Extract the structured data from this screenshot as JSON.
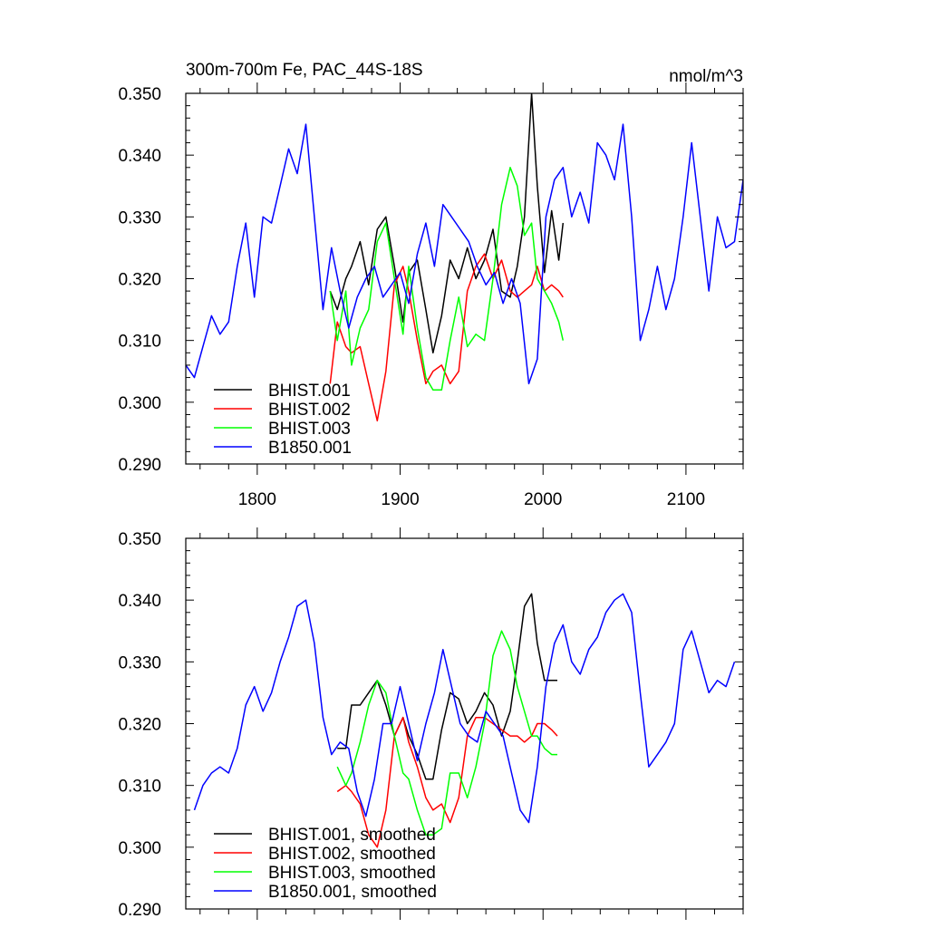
{
  "chart_data": [
    {
      "type": "line",
      "title": "300m-700m Fe, PAC_44S-18S",
      "units": "nmol/m^3",
      "xlim": [
        1750,
        2140
      ],
      "ylim": [
        0.29,
        0.35
      ],
      "xticks": [
        1800,
        1900,
        2000,
        2100
      ],
      "yticks": [
        0.29,
        0.3,
        0.31,
        0.32,
        0.33,
        0.34,
        0.35
      ],
      "ytick_labels": [
        "0.290",
        "0.300",
        "0.310",
        "0.320",
        "0.330",
        "0.340",
        "0.350"
      ],
      "xtick_labels": [
        "1800",
        "1900",
        "2000",
        "2100"
      ],
      "legend_position": "bottom-left",
      "series": [
        {
          "name": "BHIST.001",
          "color": "#000000",
          "x": [
            1851,
            1856,
            1862,
            1866,
            1872,
            1878,
            1884,
            1890,
            1896,
            1902,
            1906,
            1912,
            1918,
            1923,
            1929,
            1935,
            1941,
            1947,
            1953,
            1959,
            1965,
            1971,
            1977,
            1982,
            1987,
            1992,
            1996,
            2001,
            2006,
            2011,
            2014
          ],
          "y": [
            0.318,
            0.315,
            0.32,
            0.322,
            0.326,
            0.319,
            0.328,
            0.33,
            0.322,
            0.313,
            0.321,
            0.323,
            0.315,
            0.308,
            0.314,
            0.323,
            0.32,
            0.325,
            0.32,
            0.323,
            0.328,
            0.318,
            0.317,
            0.322,
            0.33,
            0.35,
            0.335,
            0.321,
            0.331,
            0.323,
            0.329
          ]
        },
        {
          "name": "BHIST.002",
          "color": "#ff0000",
          "x": [
            1851,
            1856,
            1862,
            1866,
            1872,
            1878,
            1884,
            1890,
            1896,
            1902,
            1906,
            1912,
            1918,
            1923,
            1929,
            1935,
            1941,
            1947,
            1953,
            1959,
            1965,
            1971,
            1977,
            1982,
            1987,
            1992,
            1996,
            2001,
            2006,
            2011,
            2014
          ],
          "y": [
            0.303,
            0.313,
            0.309,
            0.308,
            0.309,
            0.303,
            0.297,
            0.305,
            0.319,
            0.322,
            0.318,
            0.31,
            0.303,
            0.305,
            0.306,
            0.303,
            0.305,
            0.318,
            0.322,
            0.324,
            0.32,
            0.323,
            0.318,
            0.317,
            0.318,
            0.319,
            0.322,
            0.318,
            0.319,
            0.318,
            0.317
          ]
        },
        {
          "name": "BHIST.003",
          "color": "#00ff00",
          "x": [
            1851,
            1856,
            1862,
            1866,
            1872,
            1878,
            1884,
            1890,
            1896,
            1902,
            1906,
            1912,
            1918,
            1923,
            1929,
            1935,
            1941,
            1947,
            1953,
            1959,
            1965,
            1971,
            1977,
            1982,
            1987,
            1992,
            1996,
            2001,
            2006,
            2011,
            2014
          ],
          "y": [
            0.318,
            0.31,
            0.318,
            0.306,
            0.312,
            0.315,
            0.326,
            0.329,
            0.32,
            0.311,
            0.322,
            0.312,
            0.304,
            0.302,
            0.302,
            0.31,
            0.317,
            0.309,
            0.311,
            0.31,
            0.32,
            0.332,
            0.338,
            0.335,
            0.327,
            0.329,
            0.32,
            0.318,
            0.316,
            0.313,
            0.31
          ]
        },
        {
          "name": "B1850.001",
          "color": "#0000ff",
          "x": [
            1750,
            1756,
            1762,
            1768,
            1774,
            1780,
            1786,
            1792,
            1798,
            1804,
            1810,
            1816,
            1822,
            1828,
            1834,
            1840,
            1846,
            1852,
            1858,
            1864,
            1870,
            1876,
            1882,
            1888,
            1894,
            1900,
            1906,
            1912,
            1918,
            1924,
            1930,
            1936,
            1942,
            1948,
            1954,
            1960,
            1966,
            1972,
            1978,
            1984,
            1990,
            1996,
            2002,
            2008,
            2014,
            2020,
            2026,
            2032,
            2038,
            2044,
            2050,
            2056,
            2062,
            2068,
            2074,
            2080,
            2086,
            2092,
            2098,
            2104,
            2110,
            2116,
            2122,
            2128,
            2134,
            2140
          ],
          "y": [
            0.306,
            0.304,
            0.309,
            0.314,
            0.311,
            0.313,
            0.322,
            0.329,
            0.317,
            0.33,
            0.329,
            0.335,
            0.341,
            0.337,
            0.345,
            0.33,
            0.315,
            0.325,
            0.318,
            0.312,
            0.317,
            0.32,
            0.322,
            0.317,
            0.319,
            0.321,
            0.316,
            0.324,
            0.329,
            0.322,
            0.332,
            0.33,
            0.328,
            0.326,
            0.322,
            0.319,
            0.321,
            0.316,
            0.32,
            0.316,
            0.303,
            0.307,
            0.33,
            0.336,
            0.338,
            0.33,
            0.334,
            0.329,
            0.342,
            0.34,
            0.336,
            0.345,
            0.33,
            0.31,
            0.315,
            0.322,
            0.315,
            0.32,
            0.33,
            0.342,
            0.33,
            0.318,
            0.33,
            0.325,
            0.326,
            0.336
          ]
        }
      ]
    },
    {
      "type": "line",
      "xlim": [
        1750,
        2140
      ],
      "ylim": [
        0.29,
        0.35
      ],
      "xticks": [
        1800,
        1900,
        2000,
        2100
      ],
      "yticks": [
        0.29,
        0.3,
        0.31,
        0.32,
        0.33,
        0.34,
        0.35
      ],
      "ytick_labels": [
        "0.290",
        "0.300",
        "0.310",
        "0.320",
        "0.330",
        "0.340",
        "0.350"
      ],
      "legend_position": "bottom-left",
      "series": [
        {
          "name": "BHIST.001, smoothed",
          "color": "#000000",
          "x": [
            1856,
            1862,
            1866,
            1872,
            1878,
            1884,
            1890,
            1896,
            1902,
            1906,
            1912,
            1918,
            1923,
            1929,
            1935,
            1941,
            1947,
            1953,
            1959,
            1965,
            1971,
            1977,
            1982,
            1987,
            1992,
            1996,
            2001,
            2006,
            2010
          ],
          "y": [
            0.316,
            0.316,
            0.323,
            0.323,
            0.325,
            0.327,
            0.323,
            0.318,
            0.321,
            0.318,
            0.315,
            0.311,
            0.311,
            0.319,
            0.325,
            0.324,
            0.32,
            0.322,
            0.325,
            0.323,
            0.318,
            0.322,
            0.33,
            0.339,
            0.341,
            0.333,
            0.327,
            0.327,
            0.327
          ]
        },
        {
          "name": "BHIST.002, smoothed",
          "color": "#ff0000",
          "x": [
            1856,
            1862,
            1866,
            1872,
            1878,
            1884,
            1890,
            1896,
            1902,
            1906,
            1912,
            1918,
            1923,
            1929,
            1935,
            1941,
            1947,
            1953,
            1959,
            1965,
            1971,
            1977,
            1982,
            1987,
            1992,
            1996,
            2001,
            2006,
            2010
          ],
          "y": [
            0.309,
            0.31,
            0.309,
            0.307,
            0.302,
            0.3,
            0.306,
            0.318,
            0.321,
            0.317,
            0.313,
            0.308,
            0.306,
            0.307,
            0.304,
            0.308,
            0.318,
            0.321,
            0.321,
            0.32,
            0.319,
            0.318,
            0.318,
            0.317,
            0.318,
            0.32,
            0.32,
            0.319,
            0.318
          ]
        },
        {
          "name": "BHIST.003, smoothed",
          "color": "#00ff00",
          "x": [
            1856,
            1862,
            1866,
            1872,
            1878,
            1884,
            1890,
            1896,
            1902,
            1906,
            1912,
            1918,
            1923,
            1929,
            1935,
            1941,
            1947,
            1953,
            1959,
            1965,
            1971,
            1977,
            1982,
            1987,
            1992,
            1996,
            2001,
            2006,
            2010
          ],
          "y": [
            0.313,
            0.31,
            0.312,
            0.317,
            0.323,
            0.327,
            0.325,
            0.318,
            0.312,
            0.311,
            0.306,
            0.302,
            0.302,
            0.303,
            0.312,
            0.312,
            0.308,
            0.313,
            0.32,
            0.331,
            0.335,
            0.332,
            0.326,
            0.322,
            0.318,
            0.318,
            0.316,
            0.315,
            0.315
          ]
        },
        {
          "name": "B1850.001, smoothed",
          "color": "#0000ff",
          "x": [
            1756,
            1762,
            1768,
            1774,
            1780,
            1786,
            1792,
            1798,
            1804,
            1810,
            1816,
            1822,
            1828,
            1834,
            1840,
            1846,
            1852,
            1858,
            1864,
            1870,
            1876,
            1882,
            1888,
            1894,
            1900,
            1906,
            1912,
            1918,
            1924,
            1930,
            1936,
            1942,
            1948,
            1954,
            1960,
            1966,
            1972,
            1978,
            1984,
            1990,
            1996,
            2002,
            2008,
            2014,
            2020,
            2026,
            2032,
            2038,
            2044,
            2050,
            2056,
            2062,
            2068,
            2074,
            2080,
            2086,
            2092,
            2098,
            2104,
            2110,
            2116,
            2122,
            2128,
            2134
          ],
          "y": [
            0.306,
            0.31,
            0.312,
            0.313,
            0.312,
            0.316,
            0.323,
            0.326,
            0.322,
            0.325,
            0.33,
            0.334,
            0.339,
            0.34,
            0.333,
            0.321,
            0.315,
            0.317,
            0.316,
            0.309,
            0.305,
            0.311,
            0.32,
            0.32,
            0.326,
            0.32,
            0.314,
            0.32,
            0.325,
            0.332,
            0.326,
            0.32,
            0.318,
            0.317,
            0.322,
            0.32,
            0.318,
            0.312,
            0.306,
            0.304,
            0.313,
            0.326,
            0.333,
            0.336,
            0.33,
            0.328,
            0.332,
            0.334,
            0.338,
            0.34,
            0.341,
            0.338,
            0.325,
            0.313,
            0.315,
            0.317,
            0.32,
            0.332,
            0.335,
            0.33,
            0.325,
            0.327,
            0.326,
            0.33
          ]
        }
      ]
    }
  ]
}
